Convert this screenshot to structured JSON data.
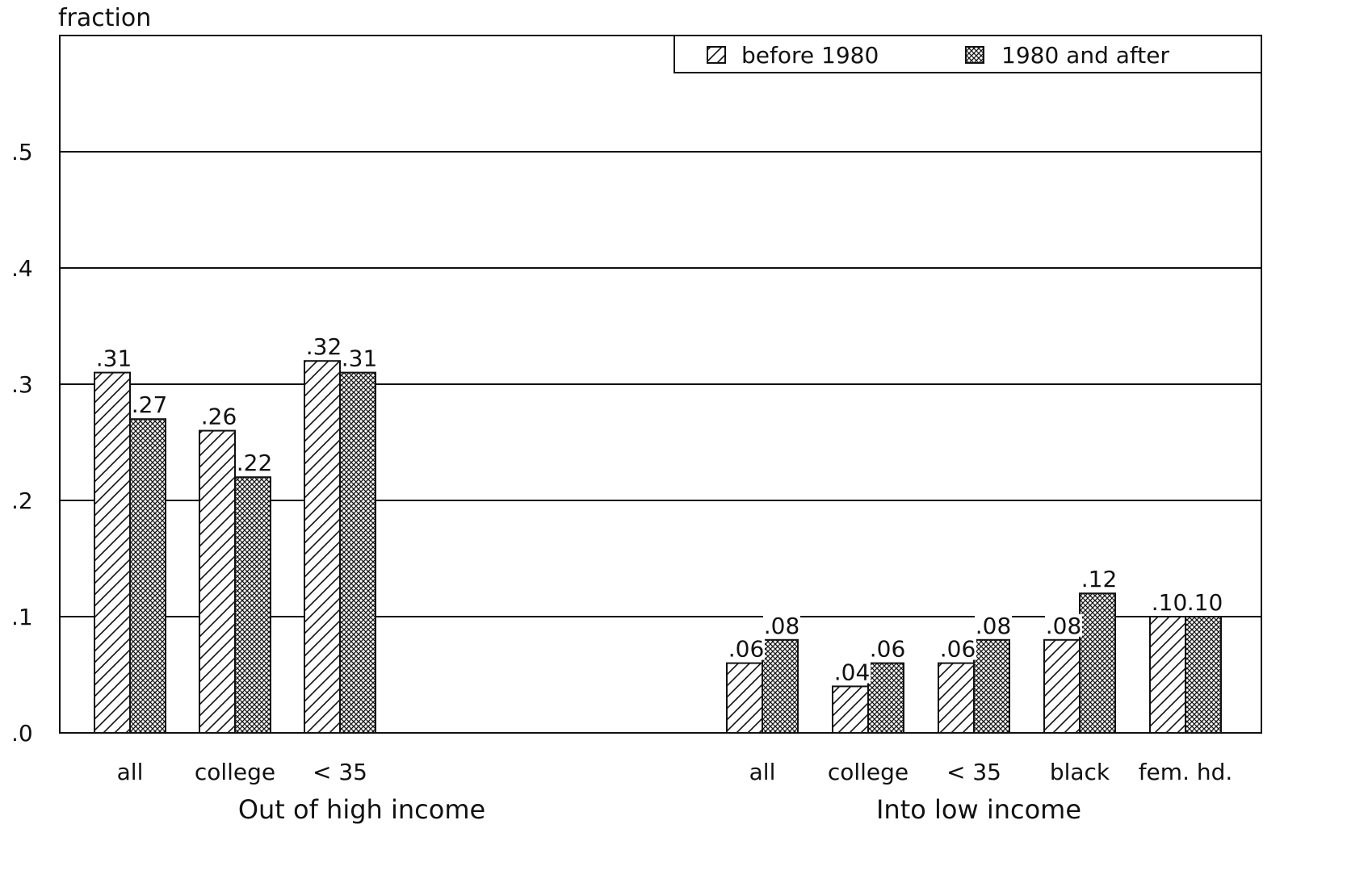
{
  "chart_data": {
    "type": "bar",
    "ylabel": "fraction",
    "ylim": [
      0,
      0.6
    ],
    "yticks": [
      {
        "value": 0.0,
        "label": ".0"
      },
      {
        "value": 0.1,
        "label": ".1"
      },
      {
        "value": 0.2,
        "label": ".2"
      },
      {
        "value": 0.3,
        "label": ".3"
      },
      {
        "value": 0.4,
        "label": ".4"
      },
      {
        "value": 0.5,
        "label": ".5"
      }
    ],
    "grid": true,
    "legend_position": "top-right",
    "series": [
      {
        "name": "before 1980",
        "pattern": "diagonal-hatch"
      },
      {
        "name": "1980 and after",
        "pattern": "crosshatch"
      }
    ],
    "groups": [
      {
        "label": "Out of high income",
        "categories": [
          {
            "label": "all",
            "values": [
              0.31,
              0.27
            ],
            "value_labels": [
              ".31",
              ".27"
            ]
          },
          {
            "label": "college",
            "values": [
              0.26,
              0.22
            ],
            "value_labels": [
              ".26",
              ".22"
            ]
          },
          {
            "label": "< 35",
            "values": [
              0.32,
              0.31
            ],
            "value_labels": [
              ".32",
              ".31"
            ]
          }
        ]
      },
      {
        "label": "Into low income",
        "categories": [
          {
            "label": "all",
            "values": [
              0.06,
              0.08
            ],
            "value_labels": [
              ".06",
              ".08"
            ]
          },
          {
            "label": "college",
            "values": [
              0.04,
              0.06
            ],
            "value_labels": [
              ".04",
              ".06"
            ]
          },
          {
            "label": "< 35",
            "values": [
              0.06,
              0.08
            ],
            "value_labels": [
              ".06",
              ".08"
            ]
          },
          {
            "label": "black",
            "values": [
              0.08,
              0.12
            ],
            "value_labels": [
              ".08",
              ".12"
            ]
          },
          {
            "label": "fem. hd.",
            "values": [
              0.1,
              0.1
            ],
            "value_labels": [
              ".10",
              ".10"
            ]
          }
        ]
      }
    ]
  }
}
